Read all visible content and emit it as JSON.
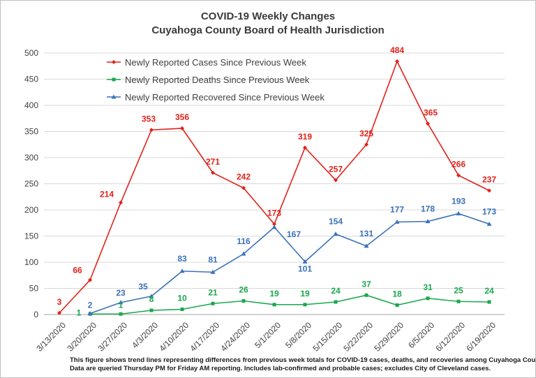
{
  "chart_data": {
    "type": "line",
    "title": "COVID-19 Weekly Changes",
    "subtitle": "Cuyahoga County Board of Health Jurisdiction",
    "categories": [
      "3/13/2020",
      "3/20/2020",
      "3/27/2020",
      "4/3/2020",
      "4/10/2020",
      "4/17/2020",
      "4/24/2020",
      "5/1/2020",
      "5/8/2020",
      "5/15/2020",
      "5/22/2020",
      "5/29/2020",
      "6/5/2020",
      "6/12/2020",
      "6/19/2020"
    ],
    "ylim": [
      0,
      500
    ],
    "yticks": [
      0,
      50,
      100,
      150,
      200,
      250,
      300,
      350,
      400,
      450,
      500
    ],
    "grid": true,
    "legend_position": "top-left",
    "series": [
      {
        "name": "Newly Reported Cases Since Previous Week",
        "color": "#e32119",
        "marker": "diamond",
        "values": [
          3,
          66,
          214,
          353,
          356,
          271,
          242,
          173,
          319,
          257,
          325,
          484,
          365,
          266,
          237
        ]
      },
      {
        "name": "Newly Reported Deaths Since Previous Week",
        "color": "#1aa84d",
        "marker": "square",
        "values": [
          null,
          1,
          1,
          8,
          10,
          21,
          26,
          19,
          19,
          24,
          37,
          18,
          31,
          25,
          24
        ]
      },
      {
        "name": "Newly Reported Recovered Since Previous Week",
        "color": "#3a72b8",
        "marker": "triangle",
        "values": [
          null,
          2,
          23,
          35,
          83,
          81,
          116,
          167,
          101,
          154,
          131,
          177,
          178,
          193,
          173
        ]
      }
    ],
    "footnote": [
      "This figure shows trend lines representing differences from previous week totals for COVID-19 cases, deaths, and recoveries among Cuyahoga County residents.",
      "Data are queried Thursday PM for Friday AM reporting. Includes lab-confirmed and probable cases; excludes City of Cleveland cases."
    ]
  }
}
